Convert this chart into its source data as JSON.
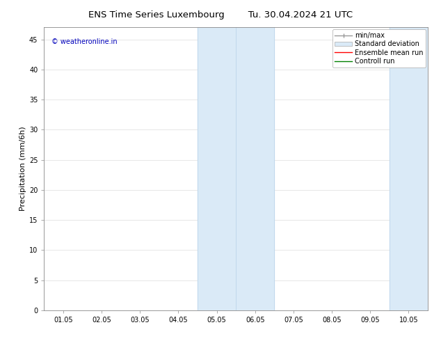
{
  "title_left": "ENS Time Series Luxembourg",
  "title_right": "Tu. 30.04.2024 21 UTC",
  "ylabel": "Precipitation (mm/6h)",
  "xlabel": "",
  "ylim": [
    0,
    47
  ],
  "yticks": [
    0,
    5,
    10,
    15,
    20,
    25,
    30,
    35,
    40,
    45
  ],
  "xtick_labels": [
    "01.05",
    "02.05",
    "03.05",
    "04.05",
    "05.05",
    "06.05",
    "07.05",
    "08.05",
    "09.05",
    "10.05"
  ],
  "xtick_positions": [
    0,
    1,
    2,
    3,
    4,
    5,
    6,
    7,
    8,
    9
  ],
  "xlim": [
    -0.5,
    9.5
  ],
  "shaded_regions": [
    {
      "x_start": 3.5,
      "x_end": 5.5,
      "color": "#daeaf7"
    },
    {
      "x_start": 8.5,
      "x_end": 9.5,
      "color": "#daeaf7"
    }
  ],
  "shaded_vlines": [
    3.5,
    4.5,
    5.5,
    8.5,
    9.5
  ],
  "copyright_text": "© weatheronline.in",
  "copyright_color": "#0000bb",
  "background_color": "#ffffff",
  "plot_bg_color": "#ffffff",
  "grid_color": "#dddddd",
  "title_fontsize": 9.5,
  "tick_fontsize": 7,
  "ylabel_fontsize": 8,
  "legend_fontsize": 7
}
